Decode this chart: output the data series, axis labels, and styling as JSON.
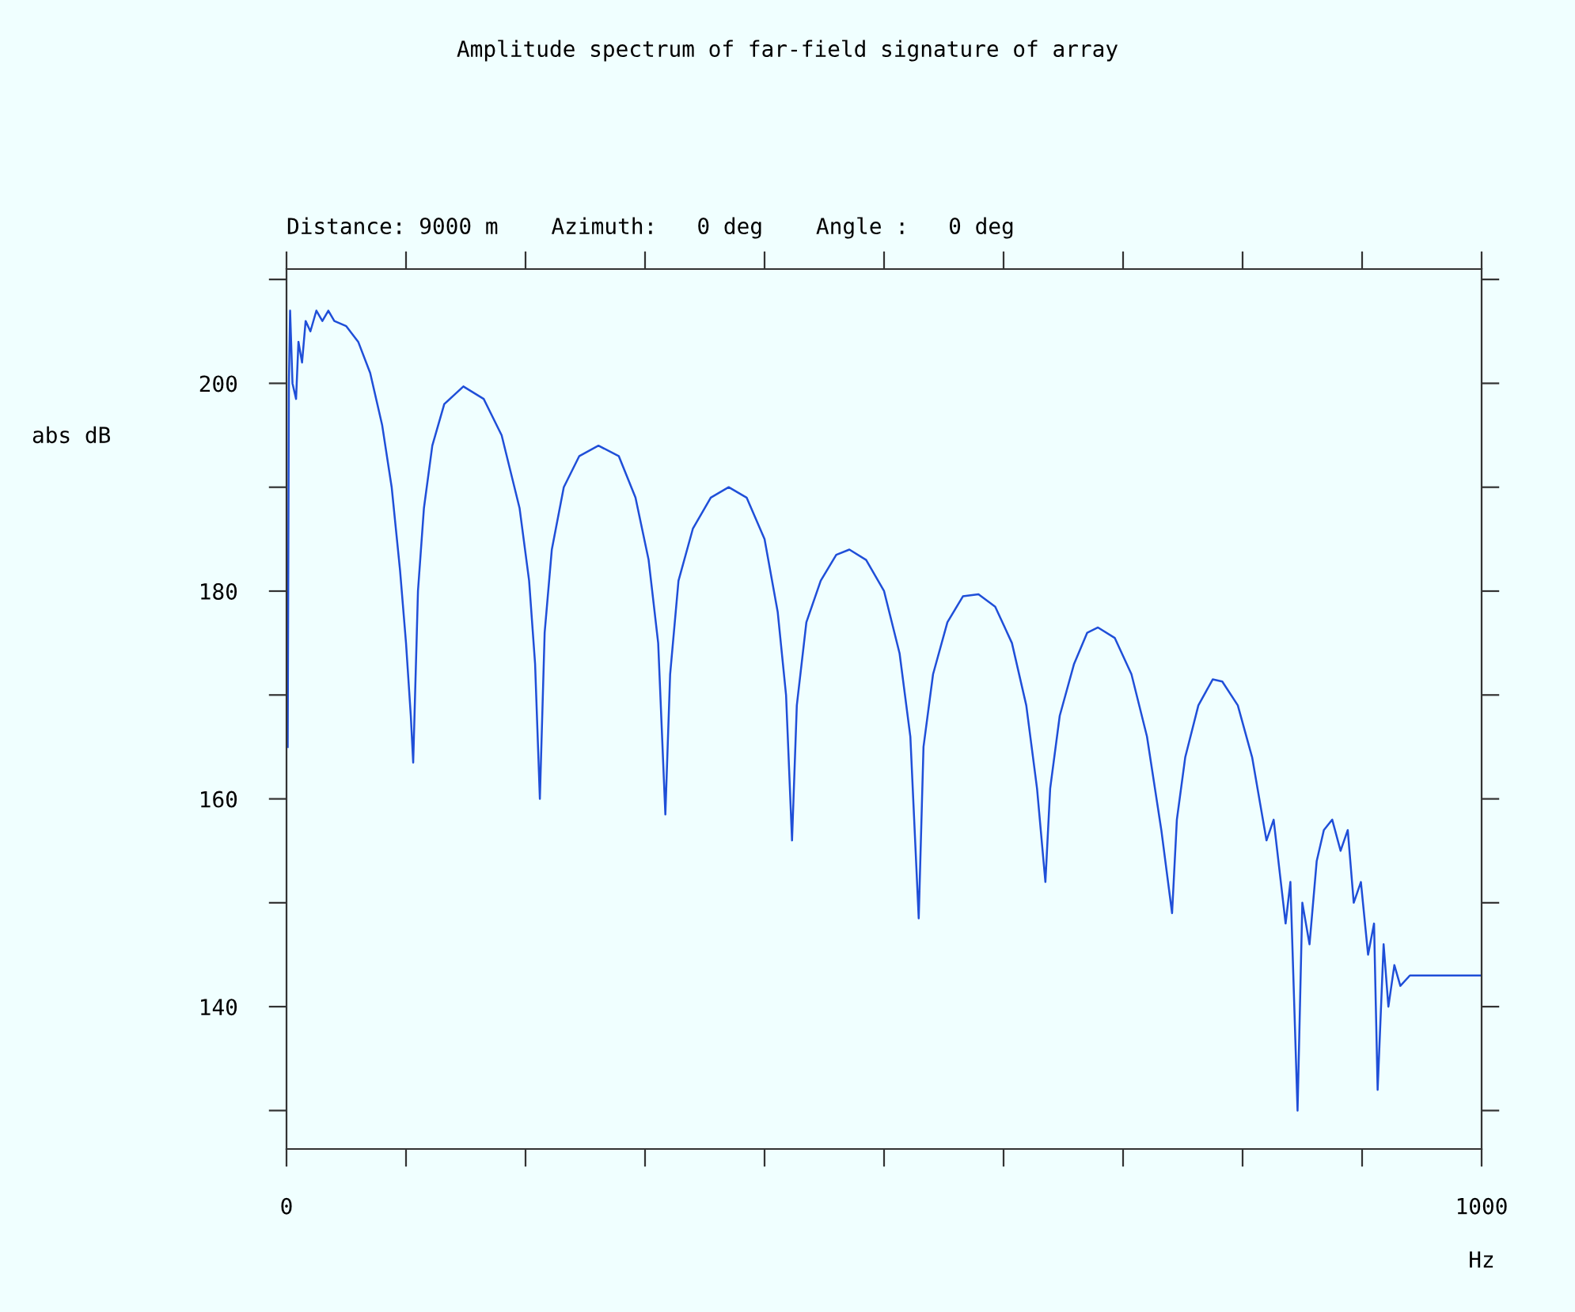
{
  "chart_data": {
    "type": "line",
    "title": "Amplitude spectrum of far-field signature of array",
    "subtitle": "Distance: 9000 m    Azimuth:   0 deg    Angle :   0 deg",
    "xlabel": "Hz",
    "ylabel": "abs dB",
    "series": [
      {
        "color": "#1f4fd8",
        "x": [
          1,
          2,
          3,
          5,
          8,
          10,
          13,
          16,
          20,
          25,
          30,
          35,
          40,
          50,
          60,
          70,
          80,
          88,
          95,
          100,
          104,
          106,
          110,
          115,
          122,
          132,
          148,
          165,
          180,
          195,
          203,
          208,
          212,
          216,
          222,
          232,
          245,
          261,
          278,
          292,
          303,
          311,
          317,
          321,
          328,
          340,
          355,
          370,
          385,
          400,
          411,
          418,
          423,
          427,
          435,
          447,
          460,
          471,
          485,
          500,
          513,
          522,
          529,
          533,
          541,
          553,
          566,
          579,
          593,
          607,
          619,
          628,
          635,
          639,
          647,
          659,
          670,
          679,
          693,
          707,
          720,
          732,
          741,
          745,
          752,
          763,
          775,
          783,
          796,
          808,
          820,
          826,
          836,
          840,
          846,
          850,
          856,
          862,
          868,
          875,
          882,
          888,
          893,
          899,
          905,
          910,
          913,
          918,
          922,
          927,
          932,
          940,
          1000
        ],
        "values": [
          165,
          200,
          207,
          200,
          198.5,
          204,
          202,
          206,
          205,
          207,
          206,
          207,
          206,
          205.5,
          204,
          201,
          196,
          190,
          182,
          175,
          168,
          163.5,
          180,
          188,
          194,
          198,
          199.7,
          198.5,
          195,
          188,
          181,
          173,
          160,
          176,
          184,
          190,
          193,
          194,
          193,
          189,
          183,
          175,
          158.5,
          172,
          181,
          186,
          189,
          190,
          189,
          185,
          178,
          170,
          156,
          169,
          177,
          181,
          183.5,
          184,
          183,
          180,
          174,
          166,
          148.5,
          165,
          172,
          177,
          179.5,
          179.7,
          178.5,
          175,
          169,
          161,
          152,
          161,
          168,
          173,
          176,
          176.5,
          175.5,
          172,
          166,
          157,
          149,
          158,
          164,
          169,
          171.5,
          171.3,
          169,
          164,
          156,
          158,
          148,
          152,
          130,
          150,
          146,
          154,
          157,
          158,
          155,
          157,
          150,
          152,
          145,
          148,
          132,
          146,
          140,
          144,
          142,
          143,
          143
        ]
      }
    ],
    "xlim": [
      0,
      1000
    ],
    "ylim": [
      126.3,
      211
    ],
    "xticks": [
      0,
      {
        "value": 100,
        "label": null
      },
      {
        "value": 200,
        "label": null
      },
      {
        "value": 300,
        "label": null
      },
      {
        "value": 400,
        "label": null
      },
      {
        "value": 500,
        "label": null
      },
      {
        "value": 600,
        "label": null
      },
      {
        "value": 700,
        "label": null
      },
      {
        "value": 800,
        "label": null
      },
      {
        "value": 900,
        "label": null
      },
      1000
    ],
    "yticks": [
      {
        "value": 130,
        "label": null
      },
      140,
      {
        "value": 150,
        "label": null
      },
      160,
      {
        "value": 170,
        "label": null
      },
      180,
      {
        "value": 190,
        "label": null
      },
      200,
      {
        "value": 210,
        "label": null
      }
    ],
    "grid": false,
    "marker": "none",
    "line_style": "solid"
  }
}
